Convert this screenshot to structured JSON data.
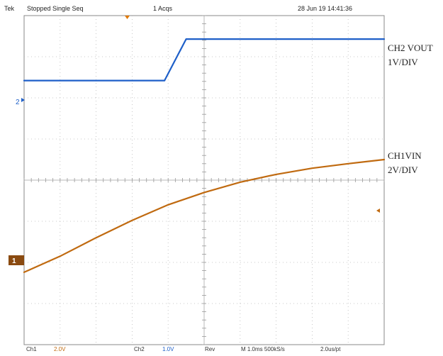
{
  "header": {
    "source": "Tek",
    "run_state": "Stopped Single Seq",
    "acquisitions": "1 Acqs",
    "datetime": "28 Jun 19 14:41:36"
  },
  "footer": {
    "ch1_name": "Ch1",
    "ch1_scale": "2.0V",
    "ch2_name": "Ch2",
    "ch2_scale": "1.0V",
    "ref_label": "Rev",
    "timebase": "M 1.0ms 500kS/s",
    "resolution": "2.0us/pt"
  },
  "markers": {
    "ch1": "1",
    "ch2": "2"
  },
  "colors": {
    "ch1": "#c06a10",
    "ch2": "#1e5fc8",
    "grid": "#b9b9b9"
  },
  "chart_data": {
    "type": "line",
    "title": "",
    "xlabel": "",
    "ylabel": "",
    "x_unit": "ms",
    "xlim": [
      0,
      10
    ],
    "ylim": [
      -4,
      4
    ],
    "grid": true,
    "series": [
      {
        "name": "CH2 VOUT",
        "label_lines": [
          "CH2 VOUT",
          "1V/DIV"
        ],
        "scale": "1V/DIV",
        "color": "#1e5fc8",
        "x": [
          0,
          1,
          2,
          3,
          3.9,
          4.5,
          5,
          6,
          7,
          8,
          9,
          10
        ],
        "y": [
          2.42,
          2.42,
          2.42,
          2.42,
          2.42,
          3.43,
          3.43,
          3.43,
          3.43,
          3.43,
          3.43,
          3.43
        ]
      },
      {
        "name": "CH1VIN",
        "label_lines": [
          "CH1VIN",
          "2V/DIV"
        ],
        "scale": "2V/DIV",
        "color": "#c06a10",
        "x": [
          0,
          1,
          2,
          3,
          4,
          5,
          6,
          7,
          8,
          9,
          10
        ],
        "y": [
          -2.24,
          -1.85,
          -1.4,
          -0.98,
          -0.6,
          -0.3,
          -0.05,
          0.14,
          0.29,
          0.4,
          0.5
        ]
      }
    ]
  }
}
